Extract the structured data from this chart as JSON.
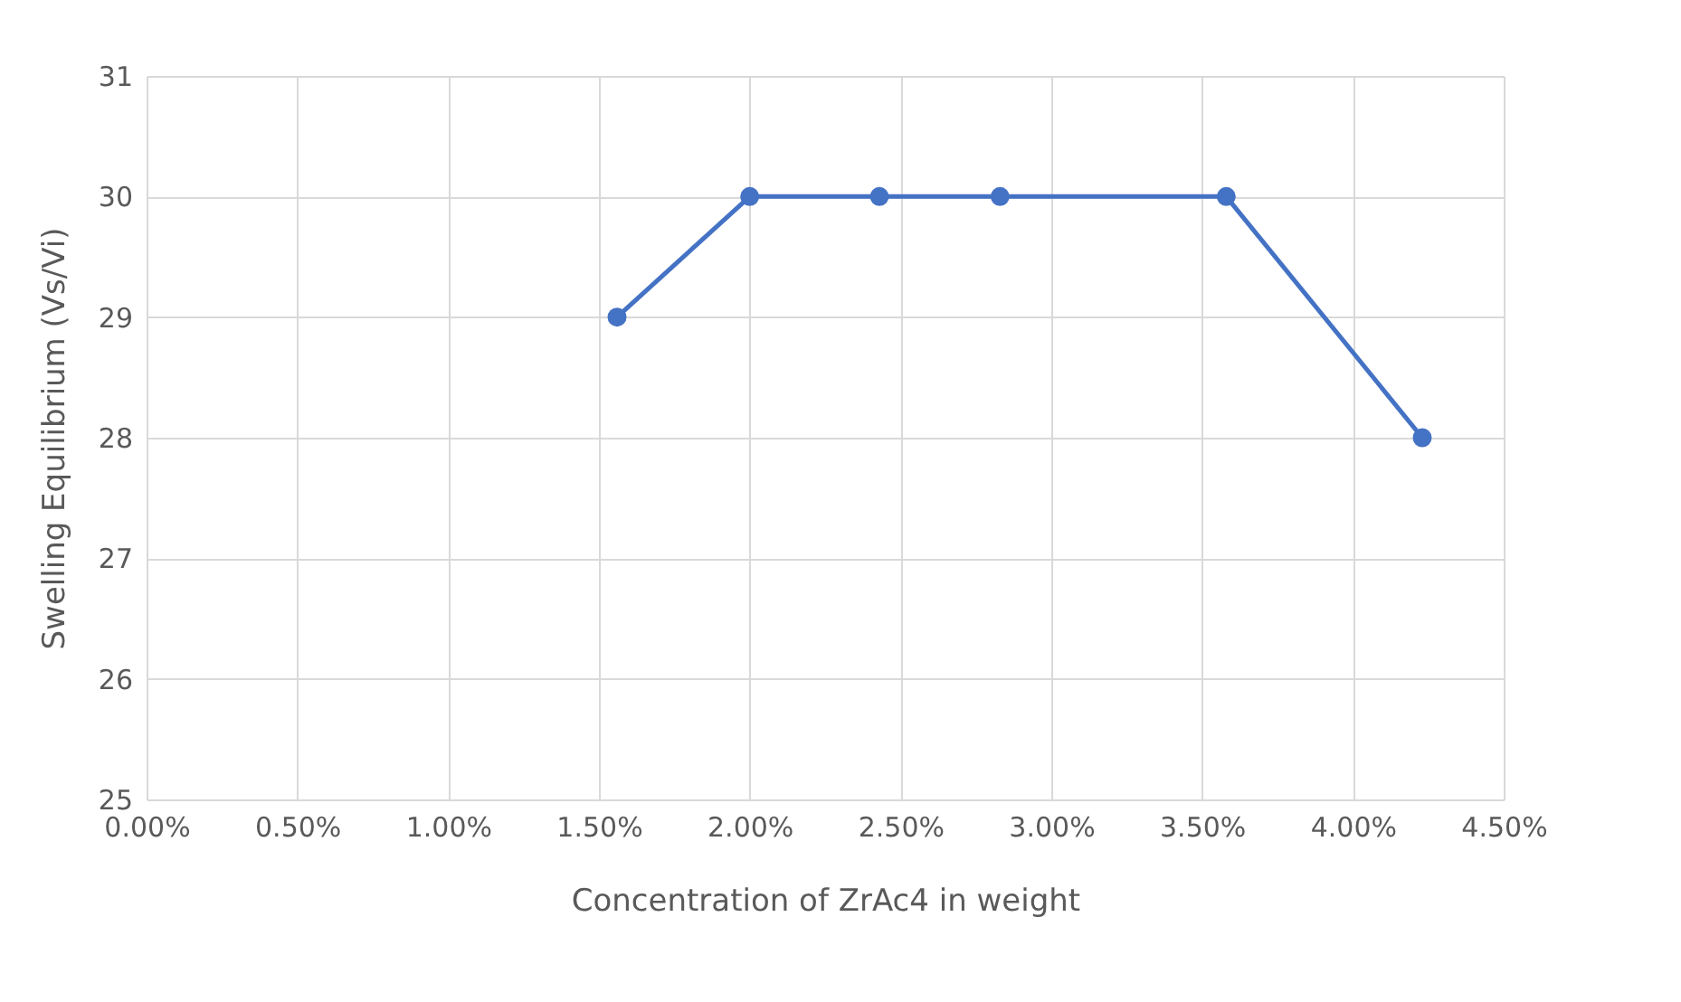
{
  "chart_data": {
    "type": "line",
    "xlabel": "Concentration of ZrAc4 in weight",
    "ylabel": "Swelling Equilibrium (Vs/Vi)",
    "x": [
      1.56,
      2.0,
      2.43,
      2.83,
      3.58,
      4.23
    ],
    "series": [
      {
        "color": "#4472c4",
        "values": [
          29,
          30,
          30,
          30,
          30,
          28
        ]
      }
    ],
    "xlim": [
      0,
      4.5
    ],
    "xticks": [
      {
        "value": 0,
        "label": "0.00%"
      },
      {
        "value": 0.5,
        "label": "0.50%"
      },
      {
        "value": 1,
        "label": "1.00%"
      },
      {
        "value": 1.5,
        "label": "1.50%"
      },
      {
        "value": 2,
        "label": "2.00%"
      },
      {
        "value": 2.5,
        "label": "2.50%"
      },
      {
        "value": 3,
        "label": "3.00%"
      },
      {
        "value": 3.5,
        "label": "3.50%"
      },
      {
        "value": 4,
        "label": "4.00%"
      },
      {
        "value": 4.5,
        "label": "4.50%"
      }
    ],
    "ylim": [
      25,
      31
    ],
    "yticks": [
      25,
      26,
      27,
      28,
      29,
      30,
      31
    ],
    "grid": true,
    "marker": "circle",
    "line_style": "solid"
  }
}
